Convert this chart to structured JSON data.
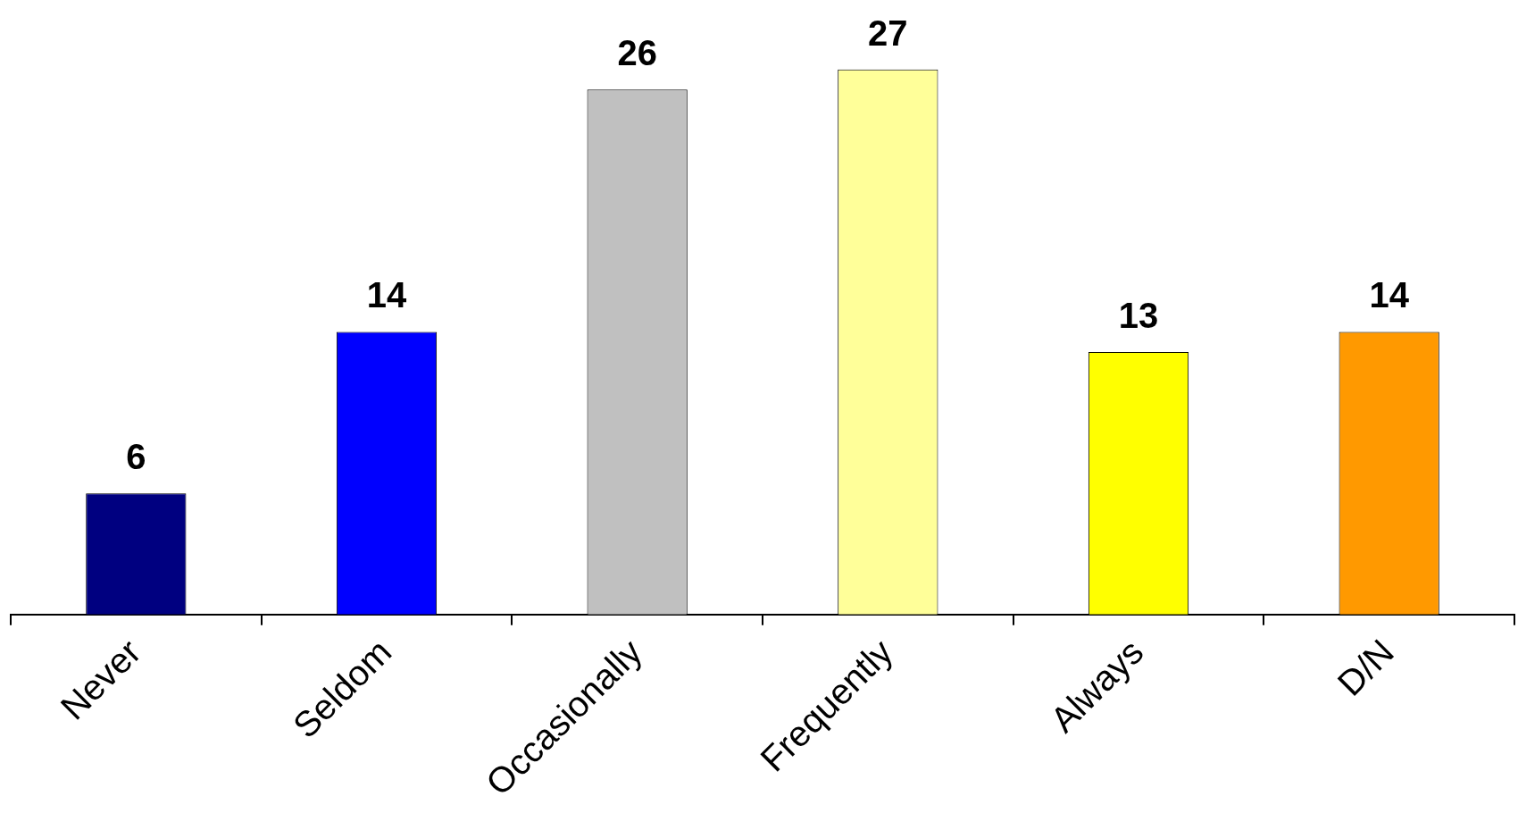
{
  "chart_data": {
    "type": "bar",
    "categories": [
      "Never",
      "Seldom",
      "Occasionally",
      "Frequently",
      "Always",
      "D/N"
    ],
    "values": [
      6,
      14,
      26,
      27,
      13,
      14
    ],
    "colors": [
      "#000080",
      "#0000ff",
      "#c0c0c0",
      "#ffff99",
      "#ffff00",
      "#ff9900"
    ],
    "data_labels": true,
    "grid": false,
    "legend": false
  }
}
